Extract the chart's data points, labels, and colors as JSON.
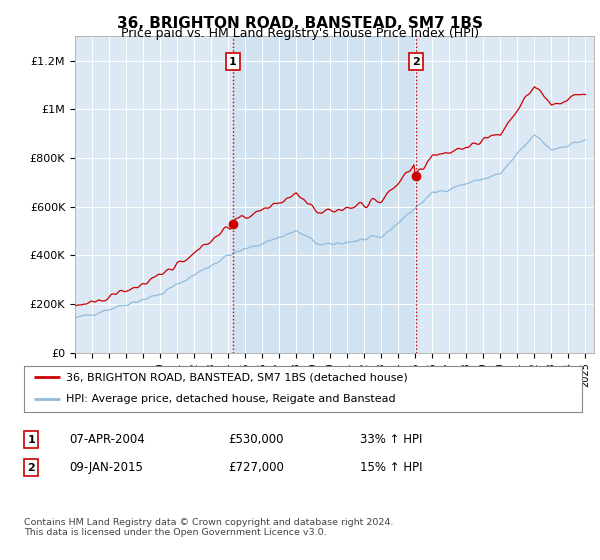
{
  "title": "36, BRIGHTON ROAD, BANSTEAD, SM7 1BS",
  "subtitle": "Price paid vs. HM Land Registry's House Price Index (HPI)",
  "title_fontsize": 11,
  "subtitle_fontsize": 9,
  "ylabel_ticks": [
    "£0",
    "£200K",
    "£400K",
    "£600K",
    "£800K",
    "£1M",
    "£1.2M"
  ],
  "ytick_values": [
    0,
    200000,
    400000,
    600000,
    800000,
    1000000,
    1200000
  ],
  "ylim": [
    0,
    1300000
  ],
  "xlim_start": 1995.0,
  "xlim_end": 2025.5,
  "background_color": "#dce9f5",
  "outer_bg_color": "#ffffff",
  "red_line_color": "#cc0000",
  "blue_line_color": "#90bbdd",
  "shade_color": "#cde0f0",
  "vline_color": "#cc0000",
  "marker1_x": 2004.27,
  "marker1_y": 530000,
  "marker2_x": 2015.03,
  "marker2_y": 727000,
  "legend_label_red": "36, BRIGHTON ROAD, BANSTEAD, SM7 1BS (detached house)",
  "legend_label_blue": "HPI: Average price, detached house, Reigate and Banstead",
  "annotation1_num": "1",
  "annotation1_date": "07-APR-2004",
  "annotation1_price": "£530,000",
  "annotation1_hpi": "33% ↑ HPI",
  "annotation2_num": "2",
  "annotation2_date": "09-JAN-2015",
  "annotation2_price": "£727,000",
  "annotation2_hpi": "15% ↑ HPI",
  "footer": "Contains HM Land Registry data © Crown copyright and database right 2024.\nThis data is licensed under the Open Government Licence v3.0."
}
